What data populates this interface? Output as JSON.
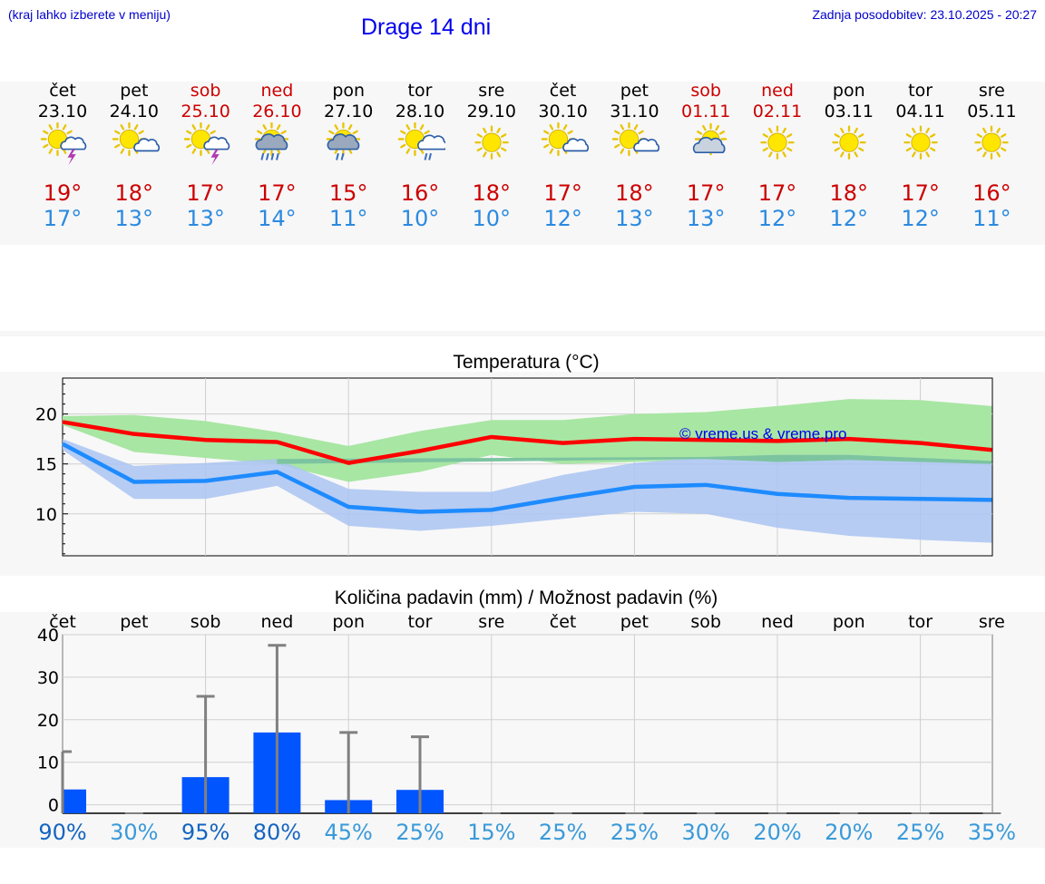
{
  "header": {
    "left_note": "(kraj lahko izberete v meniju)",
    "title": "Drage 14 dni",
    "last_update": "Zadnja posodobitev: 23.10.2025 - 20:27"
  },
  "colors": {
    "weekend_red": "#cc0000",
    "max_temp": "#cc0000",
    "min_temp": "#2b8ae0",
    "max_band": "#a8e6a3",
    "min_band": "#aac4f2",
    "overlap_band": "#7cc4a0",
    "max_line": "#ff0000",
    "min_line": "#1e8bff",
    "bar": "#0055ff",
    "prob_high": "#1565c0",
    "prob_low": "#3a9ad9"
  },
  "days": [
    {
      "name": "čet",
      "date": "23.10",
      "weekend": false,
      "icon": "sun-cloud-thunder-icon",
      "tmax": "19°",
      "tmin": "17°"
    },
    {
      "name": "pet",
      "date": "24.10",
      "weekend": false,
      "icon": "sun-cloud-icon",
      "tmax": "18°",
      "tmin": "13°"
    },
    {
      "name": "sob",
      "date": "25.10",
      "weekend": true,
      "icon": "sun-cloud-thunder-icon",
      "tmax": "17°",
      "tmin": "13°"
    },
    {
      "name": "ned",
      "date": "26.10",
      "weekend": true,
      "icon": "sun-rain-heavy-icon",
      "tmax": "17°",
      "tmin": "14°"
    },
    {
      "name": "pon",
      "date": "27.10",
      "weekend": false,
      "icon": "sun-rain-icon",
      "tmax": "15°",
      "tmin": "11°"
    },
    {
      "name": "tor",
      "date": "28.10",
      "weekend": false,
      "icon": "sun-cloud-rain-icon",
      "tmax": "16°",
      "tmin": "10°"
    },
    {
      "name": "sre",
      "date": "29.10",
      "weekend": false,
      "icon": "sun-icon",
      "tmax": "18°",
      "tmin": "10°"
    },
    {
      "name": "čet",
      "date": "30.10",
      "weekend": false,
      "icon": "sun-cloud-icon",
      "tmax": "17°",
      "tmin": "12°"
    },
    {
      "name": "pet",
      "date": "31.10",
      "weekend": false,
      "icon": "sun-cloud-icon",
      "tmax": "18°",
      "tmin": "13°"
    },
    {
      "name": "sob",
      "date": "01.11",
      "weekend": true,
      "icon": "cloud-sun-icon",
      "tmax": "17°",
      "tmin": "13°"
    },
    {
      "name": "ned",
      "date": "02.11",
      "weekend": true,
      "icon": "sun-icon",
      "tmax": "17°",
      "tmin": "12°"
    },
    {
      "name": "pon",
      "date": "03.11",
      "weekend": false,
      "icon": "sun-icon",
      "tmax": "18°",
      "tmin": "12°"
    },
    {
      "name": "tor",
      "date": "04.11",
      "weekend": false,
      "icon": "sun-icon",
      "tmax": "17°",
      "tmin": "12°"
    },
    {
      "name": "sre",
      "date": "05.11",
      "weekend": false,
      "icon": "sun-icon",
      "tmax": "16°",
      "tmin": "11°"
    }
  ],
  "chart_data": [
    {
      "type": "line",
      "title": "Temperatura (°C)",
      "ylim": [
        5.8,
        23.6
      ],
      "yticks": [
        10,
        15,
        20
      ],
      "grid": true,
      "watermark": "© vreme.us & vreme.pro",
      "x": [
        "23.10",
        "24.10",
        "25.10",
        "26.10",
        "27.10",
        "28.10",
        "29.10",
        "30.10",
        "31.10",
        "01.11",
        "02.11",
        "03.11",
        "04.11",
        "05.11"
      ],
      "series": [
        {
          "key": "max",
          "values": [
            19.2,
            18.0,
            17.4,
            17.2,
            15.1,
            16.3,
            17.7,
            17.1,
            17.5,
            17.4,
            17.3,
            17.5,
            17.1,
            16.4
          ],
          "low": [
            18.9,
            16.2,
            15.6,
            15.0,
            13.2,
            14.2,
            15.9,
            15.0,
            15.2,
            15.5,
            15.2,
            15.4,
            15.2,
            15.0
          ],
          "high": [
            19.8,
            19.9,
            19.3,
            18.2,
            16.8,
            18.3,
            19.4,
            19.4,
            20.0,
            20.2,
            20.8,
            21.5,
            21.4,
            20.8
          ]
        },
        {
          "key": "min",
          "values": [
            17.0,
            13.2,
            13.3,
            14.2,
            10.7,
            10.2,
            10.4,
            11.6,
            12.7,
            12.9,
            12.0,
            11.6,
            11.5,
            11.4
          ],
          "low": [
            16.4,
            11.5,
            11.5,
            12.8,
            8.8,
            8.3,
            8.8,
            9.5,
            10.2,
            10.0,
            8.6,
            7.8,
            7.4,
            7.1
          ],
          "high": [
            17.5,
            14.8,
            15.1,
            15.5,
            12.5,
            12.2,
            12.2,
            13.9,
            15.1,
            15.7,
            15.9,
            15.9,
            15.6,
            15.3
          ]
        }
      ]
    },
    {
      "type": "bar",
      "title": "Količina padavin (mm) / Možnost padavin (%)",
      "ylim": [
        -2,
        40
      ],
      "yticks": [
        0,
        10,
        20,
        30,
        40
      ],
      "grid": true,
      "categories": [
        "čet",
        "pet",
        "sob",
        "ned",
        "pon",
        "tor",
        "sre",
        "čet",
        "pet",
        "sob",
        "ned",
        "pon",
        "tor",
        "sre"
      ],
      "values": [
        3.6,
        0,
        6.5,
        17,
        1.1,
        3.5,
        0,
        0,
        0,
        0,
        0,
        0,
        0,
        0
      ],
      "max_values": [
        12.5,
        0,
        25.5,
        37.5,
        17,
        16,
        0,
        0,
        0,
        0,
        0,
        0,
        0,
        0
      ],
      "probability": [
        "90%",
        "30%",
        "95%",
        "80%",
        "45%",
        "25%",
        "15%",
        "25%",
        "25%",
        "30%",
        "20%",
        "20%",
        "25%",
        "35%"
      ]
    }
  ]
}
